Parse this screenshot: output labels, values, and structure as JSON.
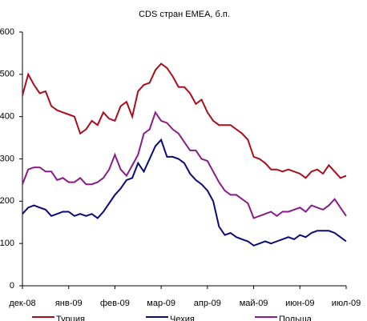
{
  "chart_data": {
    "type": "line",
    "title": "CDS стран EMEA, б.п.",
    "x": [
      0,
      0.125,
      0.25,
      0.375,
      0.5,
      0.625,
      0.75,
      0.875,
      1,
      1.125,
      1.25,
      1.375,
      1.5,
      1.625,
      1.75,
      1.875,
      2,
      2.125,
      2.25,
      2.375,
      2.5,
      2.625,
      2.75,
      2.875,
      3,
      3.125,
      3.25,
      3.375,
      3.5,
      3.625,
      3.75,
      3.875,
      4,
      4.125,
      4.25,
      4.375,
      4.5,
      4.625,
      4.75,
      4.875,
      5,
      5.125,
      5.25,
      5.375,
      5.5,
      5.625,
      5.75,
      5.875,
      6,
      6.125,
      6.25,
      6.375,
      6.5,
      6.625,
      6.75,
      6.875,
      7
    ],
    "series": [
      {
        "name": "Турция",
        "color": "#a80f1a",
        "values": [
          450,
          500,
          475,
          455,
          460,
          425,
          415,
          410,
          405,
          400,
          360,
          370,
          390,
          380,
          410,
          395,
          390,
          425,
          435,
          400,
          460,
          475,
          480,
          510,
          525,
          515,
          495,
          470,
          470,
          455,
          430,
          440,
          410,
          390,
          380,
          380,
          380,
          370,
          360,
          345,
          305,
          300,
          290,
          275,
          275,
          270,
          275,
          270,
          265,
          255,
          270,
          275,
          265,
          285,
          270,
          255,
          260
        ]
      },
      {
        "name": "Чехия",
        "color": "#0a0a78",
        "values": [
          170,
          185,
          190,
          185,
          180,
          165,
          170,
          175,
          175,
          165,
          170,
          165,
          170,
          160,
          175,
          195,
          215,
          230,
          250,
          255,
          290,
          270,
          300,
          330,
          345,
          305,
          305,
          300,
          290,
          265,
          250,
          240,
          225,
          200,
          140,
          120,
          125,
          115,
          110,
          105,
          95,
          100,
          105,
          100,
          105,
          110,
          115,
          110,
          120,
          115,
          125,
          130,
          130,
          130,
          125,
          115,
          105
        ]
      },
      {
        "name": "Польша",
        "color": "#8a1c8a",
        "values": [
          240,
          275,
          280,
          280,
          270,
          270,
          250,
          255,
          245,
          245,
          255,
          240,
          240,
          245,
          255,
          275,
          310,
          275,
          260,
          285,
          310,
          360,
          370,
          410,
          390,
          385,
          370,
          360,
          340,
          320,
          320,
          300,
          295,
          270,
          245,
          225,
          215,
          215,
          205,
          195,
          160,
          165,
          170,
          175,
          165,
          175,
          175,
          180,
          185,
          175,
          190,
          185,
          180,
          190,
          205,
          185,
          165
        ]
      }
    ],
    "xlim": [
      0,
      7
    ],
    "xticks": [
      {
        "value": 0,
        "label": "дек-08"
      },
      {
        "value": 1,
        "label": "янв-09"
      },
      {
        "value": 2,
        "label": "фев-09"
      },
      {
        "value": 3,
        "label": "мар-09"
      },
      {
        "value": 4,
        "label": "апр-09"
      },
      {
        "value": 5,
        "label": "май-09"
      },
      {
        "value": 6,
        "label": "июн-09"
      },
      {
        "value": 7,
        "label": "июл-09"
      }
    ],
    "ylim": [
      0,
      600
    ],
    "yticks": [
      0,
      100,
      200,
      300,
      400,
      500,
      600
    ]
  }
}
